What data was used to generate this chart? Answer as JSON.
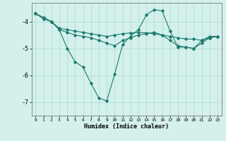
{
  "xlabel": "Humidex (Indice chaleur)",
  "background_color": "#d4f0eb",
  "grid_color": "#b0ddd6",
  "line_color": "#1a7a6e",
  "xlim": [
    -0.5,
    23.5
  ],
  "ylim": [
    -7.5,
    -3.3
  ],
  "yticks": [
    -7,
    -6,
    -5,
    -4
  ],
  "xticks": [
    0,
    1,
    2,
    3,
    4,
    5,
    6,
    7,
    8,
    9,
    10,
    11,
    12,
    13,
    14,
    15,
    16,
    17,
    18,
    19,
    20,
    21,
    22,
    23
  ],
  "series1_x": [
    0,
    1,
    2,
    3,
    4,
    5,
    6,
    7,
    8,
    9,
    10,
    11,
    12,
    13,
    14,
    15,
    16,
    17,
    18,
    19,
    20,
    21,
    22,
    23
  ],
  "series1_y": [
    -3.7,
    -3.9,
    -4.0,
    -4.25,
    -4.3,
    -4.35,
    -4.4,
    -4.45,
    -4.5,
    -4.55,
    -4.5,
    -4.45,
    -4.42,
    -4.4,
    -4.42,
    -4.45,
    -4.5,
    -4.55,
    -4.6,
    -4.65,
    -4.65,
    -4.7,
    -4.6,
    -4.55
  ],
  "series2_x": [
    0,
    1,
    2,
    3,
    4,
    5,
    6,
    7,
    8,
    9,
    10,
    11,
    12,
    13,
    14,
    15,
    16,
    17,
    18,
    19,
    20,
    21,
    22,
    23
  ],
  "series2_y": [
    -3.7,
    -3.85,
    -4.0,
    -4.3,
    -5.0,
    -5.5,
    -5.7,
    -6.3,
    -6.85,
    -6.95,
    -5.95,
    -4.85,
    -4.55,
    -4.3,
    -3.75,
    -3.55,
    -3.6,
    -4.35,
    -4.95,
    -4.95,
    -5.0,
    -4.7,
    -4.55,
    -4.55
  ],
  "series3_x": [
    0,
    1,
    2,
    3,
    4,
    5,
    6,
    7,
    8,
    9,
    10,
    11,
    12,
    13,
    14,
    15,
    16,
    17,
    18,
    19,
    20,
    21,
    22,
    23
  ],
  "series3_y": [
    -3.7,
    -3.85,
    -4.0,
    -4.3,
    -4.4,
    -4.5,
    -4.55,
    -4.6,
    -4.7,
    -4.8,
    -4.9,
    -4.7,
    -4.6,
    -4.5,
    -4.45,
    -4.4,
    -4.5,
    -4.7,
    -4.9,
    -4.95,
    -5.0,
    -4.8,
    -4.6,
    -4.55
  ]
}
